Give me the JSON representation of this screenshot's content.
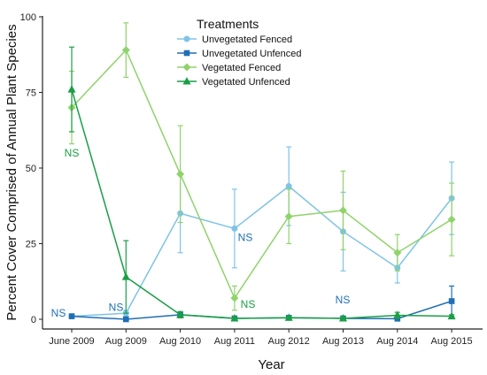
{
  "chart_data": {
    "type": "line",
    "title": "",
    "xlabel": "Year",
    "ylabel": "Percent Cover Comprised of Annual Plant Species",
    "categories": [
      "June 2009",
      "Aug 2009",
      "Aug 2010",
      "Aug 2011",
      "Aug 2012",
      "Aug 2013",
      "Aug 2014",
      "Aug 2015"
    ],
    "ylim": [
      0,
      100
    ],
    "yticks": [
      "0",
      "25",
      "50",
      "75",
      "100"
    ],
    "grid": false,
    "legend": {
      "title": "Treatments",
      "position": "top-center"
    },
    "series": [
      {
        "name": "Unvegetated Fenced",
        "color": "#7fc3e6",
        "marker": "circle",
        "values": [
          1,
          2,
          35,
          30,
          44,
          29,
          17,
          40
        ],
        "err": [
          0.5,
          1,
          13,
          13,
          13,
          13,
          5,
          12
        ]
      },
      {
        "name": "Unvegetated Unfenced",
        "color": "#1f6fb5",
        "marker": "square",
        "values": [
          1,
          0,
          1.5,
          0.3,
          0.5,
          0.3,
          0.2,
          6
        ],
        "err": [
          0.5,
          0.5,
          1,
          0.5,
          0.5,
          0.5,
          0.5,
          5
        ]
      },
      {
        "name": "Vegetated Fenced",
        "color": "#8fd36b",
        "marker": "diamond",
        "values": [
          70,
          89,
          48,
          7,
          34,
          36,
          22,
          33
        ],
        "err": [
          12,
          9,
          16,
          4,
          9,
          13,
          6,
          12
        ]
      },
      {
        "name": "Vegetated Unfenced",
        "color": "#1a9e46",
        "marker": "triangle",
        "values": [
          76,
          14,
          1.5,
          0.3,
          0.5,
          0.3,
          1.3,
          1
        ],
        "err": [
          14,
          12,
          1,
          0.5,
          0.5,
          0.5,
          1,
          0.5
        ]
      }
    ],
    "annotations": [
      {
        "text": "NS",
        "category": 0,
        "y": 55,
        "color": "#1a9e46"
      },
      {
        "text": "NS",
        "category": 0,
        "y": 2,
        "color": "#1f6fb5"
      },
      {
        "text": "NS",
        "category": 1,
        "y": 4,
        "color": "#1f6fb5"
      },
      {
        "text": "NS",
        "category": 3,
        "y": 27,
        "color": "#1f6fb5"
      },
      {
        "text": "NS",
        "category": 3,
        "y": 5,
        "color": "#1a9e46"
      },
      {
        "text": "NS",
        "category": 5,
        "y": 6.5,
        "color": "#1f6fb5"
      }
    ]
  }
}
